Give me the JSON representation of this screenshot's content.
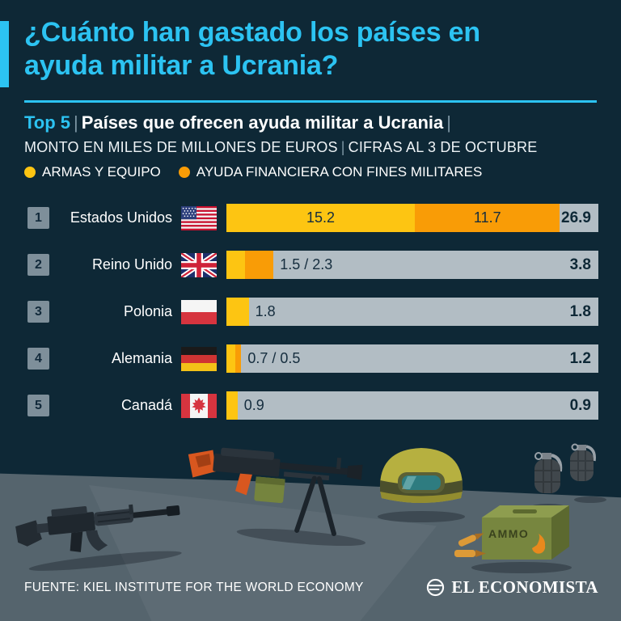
{
  "colors": {
    "background": "#0e2836",
    "accent_cyan": "#2cc3f2",
    "weapons_yellow": "#fdc512",
    "finance_orange": "#f99c06",
    "bar_track_gray": "#b2bdc4",
    "floor_gray": "#55646d",
    "dark_text": "#11293a"
  },
  "header": {
    "title_lines": [
      "¿Cuánto han gastado los países en",
      "ayuda militar a Ucrania?"
    ]
  },
  "subtitle": {
    "top5": "Top 5",
    "sep": "|",
    "heading": "Países que ofrecen ayuda militar a Ucrania",
    "line2_part1": "MONTO EN MILES DE MILLONES DE EUROS",
    "line2_part2": "CIFRAS AL 3 DE OCTUBRE"
  },
  "legend": {
    "items": [
      {
        "label": "ARMAS Y EQUIPO",
        "color": "#fdc512"
      },
      {
        "label": "AYUDA FINANCIERA CON FINES MILITARES",
        "color": "#f99c06"
      }
    ]
  },
  "chart_data": {
    "type": "bar",
    "orientation": "horizontal",
    "title": "Top 5 | Países que ofrecen ayuda militar a Ucrania",
    "subtitle": "Monto en miles de millones de euros | Cifras al 3 de octubre",
    "categories": [
      "Estados Unidos",
      "Reino Unido",
      "Polonia",
      "Alemania",
      "Canadá"
    ],
    "series": [
      {
        "name": "Armas y equipo",
        "color": "#fdc512",
        "values": [
          15.2,
          1.5,
          1.8,
          0.7,
          0.9
        ]
      },
      {
        "name": "Ayuda financiera con fines militares",
        "color": "#f99c06",
        "values": [
          11.7,
          2.3,
          0,
          0.5,
          0
        ]
      }
    ],
    "totals": [
      26.9,
      3.8,
      1.8,
      1.2,
      0.9
    ],
    "xlim": [
      0,
      30
    ],
    "unit": "miles de millones de euros",
    "legend_position": "top",
    "grid": false
  },
  "rows": [
    {
      "rank": "1",
      "country": "Estados Unidos",
      "flag": "estados-unidos",
      "seg_label_armas": "15.2",
      "seg_label_financiera": "11.7",
      "outside_label": "",
      "total": "26.9"
    },
    {
      "rank": "2",
      "country": "Reino Unido",
      "flag": "reino-unido",
      "seg_label_armas": "",
      "seg_label_financiera": "",
      "outside_label": "1.5 / 2.3",
      "total": "3.8"
    },
    {
      "rank": "3",
      "country": "Polonia",
      "flag": "polonia",
      "seg_label_armas": "",
      "seg_label_financiera": "",
      "outside_label": "1.8",
      "total": "1.8"
    },
    {
      "rank": "4",
      "country": "Alemania",
      "flag": "alemania",
      "seg_label_armas": "",
      "seg_label_financiera": "",
      "outside_label": "0.7 / 0.5",
      "total": "1.2"
    },
    {
      "rank": "5",
      "country": "Canadá",
      "flag": "canada",
      "seg_label_armas": "",
      "seg_label_financiera": "",
      "outside_label": "0.9",
      "total": "0.9"
    }
  ],
  "illustration": {
    "ammo_box_label": "AMMO",
    "items": [
      "rifle",
      "machine-gun",
      "helmet",
      "grenades",
      "ammo-box"
    ]
  },
  "footer": {
    "source": "FUENTE: KIEL INSTITUTE FOR THE WORLD ECONOMY",
    "brand": "EL ECONOMISTA"
  }
}
